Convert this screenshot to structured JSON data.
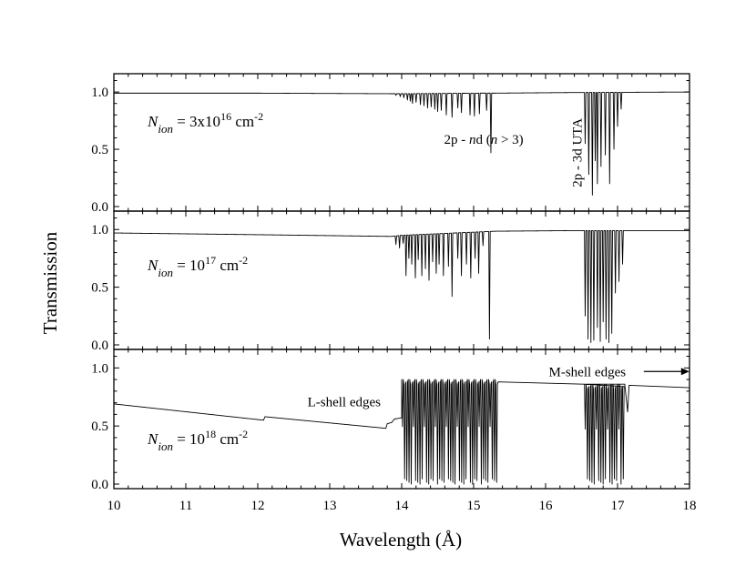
{
  "chart_data": {
    "type": "line",
    "layout": "three vertically stacked panels sharing the x axis",
    "xlabel": "Wavelength (Å)",
    "ylabel": "Transmission",
    "xlim": [
      10,
      18
    ],
    "ylim": [
      0,
      1.12
    ],
    "x_ticks": [
      "10",
      "11",
      "12",
      "13",
      "14",
      "15",
      "16",
      "17",
      "18"
    ],
    "y_ticks": [
      "0.0",
      "0.5",
      "1.0"
    ],
    "line_color": "#000000",
    "grid": false,
    "legend": "none",
    "panels": [
      {
        "nion_label": {
          "sym": "N",
          "sub": "ion",
          "eq": "= 3x10",
          "exp": "16",
          "unit": " cm",
          "uexp": "-2"
        },
        "continuum": [
          [
            10.0,
            0.99
          ],
          [
            12.0,
            0.99
          ],
          [
            13.86,
            0.985
          ],
          [
            14.0,
            0.985
          ],
          [
            15.1,
            0.99
          ],
          [
            15.3,
            0.99
          ],
          [
            16.3,
            0.995
          ],
          [
            18.0,
            1.0
          ]
        ],
        "lines": [
          [
            13.92,
            0.97
          ],
          [
            13.98,
            0.96
          ],
          [
            14.03,
            0.95
          ],
          [
            14.08,
            0.93
          ],
          [
            14.12,
            0.92
          ],
          [
            14.15,
            0.9
          ],
          [
            14.2,
            0.91
          ],
          [
            14.26,
            0.89
          ],
          [
            14.31,
            0.88
          ],
          [
            14.36,
            0.86
          ],
          [
            14.41,
            0.87
          ],
          [
            14.46,
            0.85
          ],
          [
            14.5,
            0.83
          ],
          [
            14.55,
            0.84
          ],
          [
            14.62,
            0.8
          ],
          [
            14.7,
            0.78
          ],
          [
            14.78,
            0.86
          ],
          [
            14.83,
            0.82
          ],
          [
            14.95,
            0.8
          ],
          [
            15.01,
            0.79
          ],
          [
            15.08,
            0.81
          ],
          [
            15.18,
            0.84
          ],
          [
            15.24,
            0.47
          ],
          [
            16.55,
            0.55
          ],
          [
            16.6,
            0.28
          ],
          [
            16.65,
            0.1
          ],
          [
            16.69,
            0.4
          ],
          [
            16.72,
            0.2
          ],
          [
            16.77,
            0.35
          ],
          [
            16.83,
            0.45
          ],
          [
            16.89,
            0.2
          ],
          [
            16.95,
            0.5
          ],
          [
            17.0,
            0.7
          ],
          [
            17.05,
            0.85
          ]
        ],
        "annotations": [
          {
            "text": "2p - nd (n > 3)",
            "rich": [
              {
                "t": "2p - "
              },
              {
                "t": "n",
                "i": true
              },
              {
                "t": "d ("
              },
              {
                "t": "n",
                "i": true
              },
              {
                "t": " > 3)"
              }
            ],
            "x": 15.14,
            "y": 0.55,
            "rotate": false
          },
          {
            "text": "2p - 3d UTA",
            "x": 16.5,
            "y": 0.47,
            "rotate": true
          }
        ]
      },
      {
        "nion_label": {
          "sym": "N",
          "sub": "ion",
          "eq": "= 10",
          "exp": "17",
          "unit": " cm",
          "uexp": "-2"
        },
        "continuum": [
          [
            10.0,
            0.97
          ],
          [
            12.0,
            0.955
          ],
          [
            13.86,
            0.94
          ],
          [
            14.0,
            0.95
          ],
          [
            15.3,
            0.985
          ],
          [
            16.3,
            0.99
          ],
          [
            18.0,
            0.99
          ]
        ],
        "lines": [
          [
            13.92,
            0.87
          ],
          [
            13.97,
            0.84
          ],
          [
            14.02,
            0.88
          ],
          [
            14.06,
            0.6
          ],
          [
            14.1,
            0.75
          ],
          [
            14.14,
            0.7
          ],
          [
            14.19,
            0.58
          ],
          [
            14.23,
            0.74
          ],
          [
            14.28,
            0.6
          ],
          [
            14.33,
            0.66
          ],
          [
            14.38,
            0.56
          ],
          [
            14.43,
            0.72
          ],
          [
            14.48,
            0.62
          ],
          [
            14.52,
            0.7
          ],
          [
            14.58,
            0.6
          ],
          [
            14.65,
            0.68
          ],
          [
            14.7,
            0.42
          ],
          [
            14.78,
            0.75
          ],
          [
            14.83,
            0.6
          ],
          [
            14.9,
            0.7
          ],
          [
            14.96,
            0.58
          ],
          [
            15.02,
            0.75
          ],
          [
            15.07,
            0.62
          ],
          [
            15.13,
            0.86
          ],
          [
            15.22,
            0.05
          ],
          [
            16.55,
            0.25
          ],
          [
            16.59,
            0.05
          ],
          [
            16.63,
            0.02
          ],
          [
            16.67,
            0.04
          ],
          [
            16.72,
            0.15
          ],
          [
            16.76,
            0.03
          ],
          [
            16.8,
            0.2
          ],
          [
            16.84,
            0.05
          ],
          [
            16.88,
            0.02
          ],
          [
            16.92,
            0.1
          ],
          [
            16.97,
            0.45
          ],
          [
            17.02,
            0.55
          ],
          [
            17.07,
            0.7
          ]
        ]
      },
      {
        "nion_label": {
          "sym": "N",
          "sub": "ion",
          "eq": "= 10",
          "exp": "18",
          "unit": " cm",
          "uexp": "-2"
        },
        "continuum": [
          [
            10.0,
            0.69
          ],
          [
            12.08,
            0.55
          ],
          [
            12.1,
            0.58
          ],
          [
            13.78,
            0.48
          ],
          [
            13.8,
            0.52
          ],
          [
            13.86,
            0.53
          ],
          [
            13.9,
            0.56
          ],
          [
            14.0,
            0.57
          ]
        ],
        "bands": [
          {
            "x0": 14.0,
            "x1": 15.34,
            "top": 0.9,
            "bottom": 0.0,
            "n": 44
          },
          {
            "x0": 16.54,
            "x1": 17.1,
            "top": 0.86,
            "bottom": 0.0,
            "n": 18
          }
        ],
        "continuum_after": [
          [
            15.34,
            0.88
          ],
          [
            16.54,
            0.86
          ],
          [
            17.1,
            0.86
          ],
          [
            17.14,
            0.62
          ],
          [
            17.16,
            0.85
          ],
          [
            18.0,
            0.83
          ]
        ],
        "annotations": [
          {
            "text": "L-shell edges",
            "x": 13.2,
            "y": 0.67,
            "rotate": false
          },
          {
            "text": "M-shell edges",
            "x": 16.58,
            "y": 0.93,
            "rotate": false,
            "arrow": true
          }
        ]
      }
    ]
  }
}
